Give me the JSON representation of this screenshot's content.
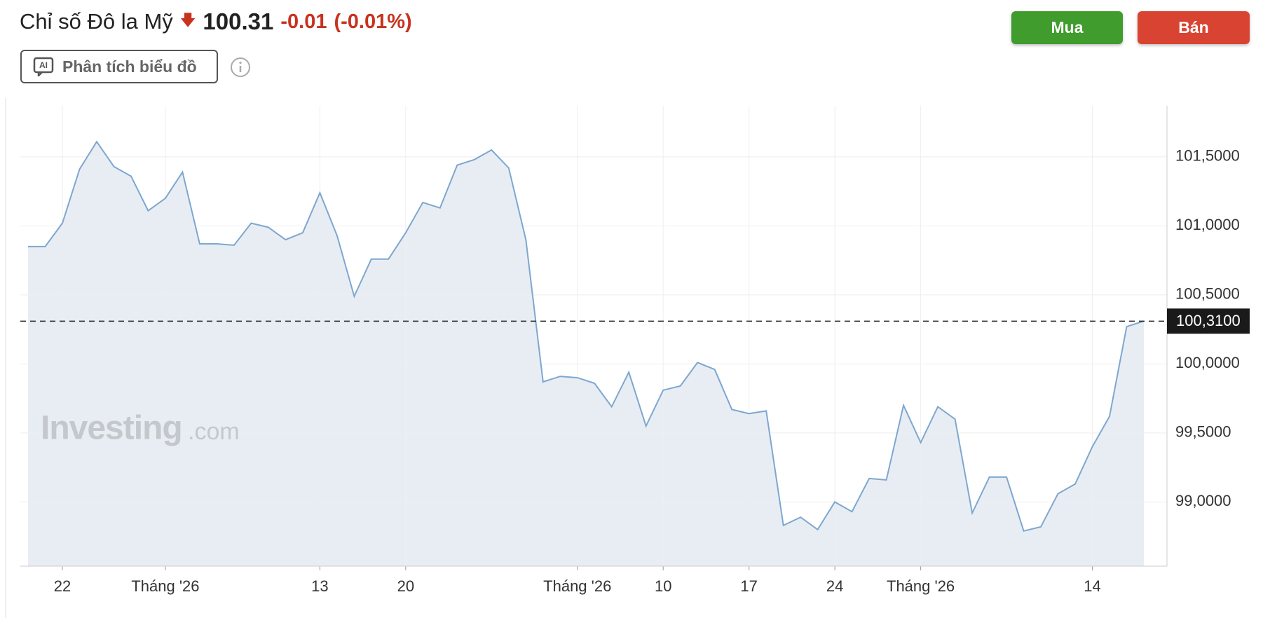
{
  "header": {
    "title": "Chỉ số Đô la Mỹ",
    "price": "100.31",
    "change": "-0.01",
    "change_percent": "(-0.01%)",
    "analysis_button": "Phân tích biểu đồ",
    "buy_button": "Mua",
    "sell_button": "Bán"
  },
  "watermark": {
    "brand": "Investing",
    "suffix": ".com"
  },
  "chart_data": {
    "type": "line",
    "categories": [
      null,
      null,
      "22",
      null,
      null,
      null,
      null,
      null,
      "Tháng '26",
      null,
      null,
      null,
      null,
      null,
      null,
      null,
      null,
      "13",
      null,
      null,
      null,
      null,
      "20",
      null,
      null,
      null,
      null,
      null,
      null,
      null,
      null,
      null,
      "Tháng '26",
      null,
      null,
      null,
      null,
      "10",
      null,
      null,
      null,
      null,
      "17",
      null,
      null,
      null,
      null,
      "24",
      null,
      null,
      null,
      null,
      "Tháng '26",
      null,
      null,
      null,
      null,
      null,
      null,
      null,
      null,
      null,
      "14",
      null,
      null,
      null
    ],
    "values": [
      100.85,
      100.85,
      101.02,
      101.41,
      101.61,
      101.43,
      101.36,
      101.11,
      101.2,
      101.39,
      100.87,
      100.87,
      100.86,
      101.02,
      100.99,
      100.9,
      100.95,
      101.24,
      100.93,
      100.49,
      100.76,
      100.76,
      100.95,
      101.17,
      101.13,
      101.44,
      101.48,
      101.55,
      101.42,
      100.9,
      99.87,
      99.91,
      99.9,
      99.86,
      99.69,
      99.94,
      99.55,
      99.81,
      99.84,
      100.01,
      99.96,
      99.67,
      99.64,
      99.66,
      98.83,
      98.89,
      98.8,
      99.0,
      98.93,
      99.17,
      99.16,
      99.7,
      99.43,
      99.69,
      99.6,
      98.92,
      99.18,
      99.18,
      98.79,
      98.82,
      99.06,
      99.13,
      99.4,
      99.62,
      100.27,
      100.31
    ],
    "color": "#7ea7cf",
    "fill": "#e8edf4",
    "ylim": [
      98.535,
      101.87
    ],
    "yticks": [
      {
        "value": 99,
        "label": "99,0000"
      },
      {
        "value": 99.5,
        "label": "99,5000"
      },
      {
        "value": 100,
        "label": "100,0000"
      },
      {
        "value": 100.5,
        "label": "100,5000"
      },
      {
        "value": 101,
        "label": "101,0000"
      },
      {
        "value": 101.5,
        "label": "101,5000"
      }
    ],
    "price_line": {
      "value": 100.31,
      "label": "100,3100"
    },
    "grid": true
  }
}
